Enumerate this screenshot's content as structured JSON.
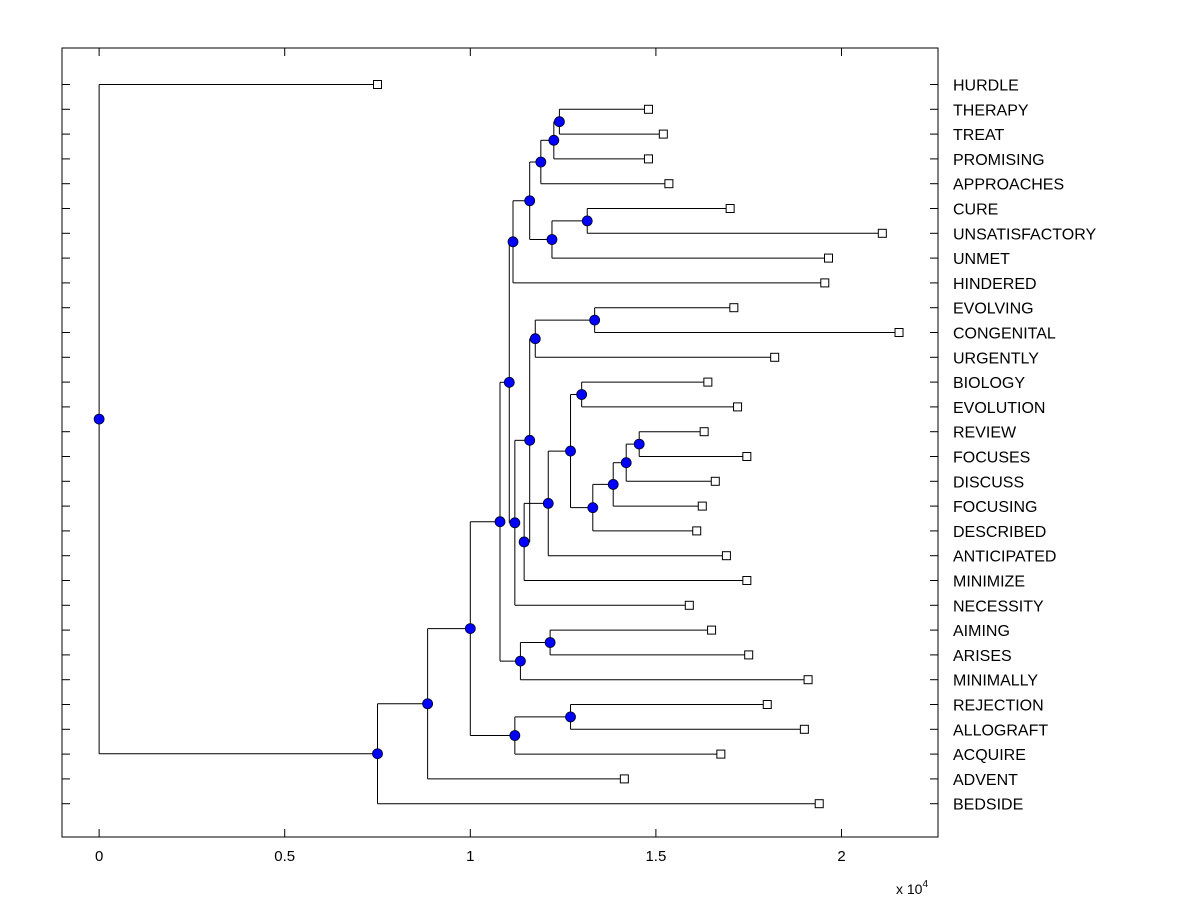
{
  "chart_data": {
    "type": "dendrogram",
    "title": "",
    "xlabel": "",
    "ylabel": "",
    "x_exponent_label": "x 10",
    "x_exponent_power": "4",
    "xlim": [
      -0.1,
      2.26
    ],
    "xticks": [
      0,
      0.5,
      1,
      1.5,
      2
    ],
    "xtick_labels": [
      "0",
      "0.5",
      "1",
      "1.5",
      "2"
    ],
    "root": "r",
    "colors": {
      "line": "#000000",
      "node": "#0000ff",
      "leaf_fill": "#ffffff"
    },
    "leaves": [
      {
        "id": "HURDLE",
        "x": 0.75
      },
      {
        "id": "THERAPY",
        "x": 1.48
      },
      {
        "id": "TREAT",
        "x": 1.52
      },
      {
        "id": "PROMISING",
        "x": 1.48
      },
      {
        "id": "APPROACHES",
        "x": 1.535
      },
      {
        "id": "CURE",
        "x": 1.7
      },
      {
        "id": "UNSATISFACTORY",
        "x": 2.11
      },
      {
        "id": "UNMET",
        "x": 1.965
      },
      {
        "id": "HINDERED",
        "x": 1.955
      },
      {
        "id": "EVOLVING",
        "x": 1.71
      },
      {
        "id": "CONGENITAL",
        "x": 2.155
      },
      {
        "id": "URGENTLY",
        "x": 1.82
      },
      {
        "id": "BIOLOGY",
        "x": 1.64
      },
      {
        "id": "EVOLUTION",
        "x": 1.72
      },
      {
        "id": "REVIEW",
        "x": 1.63
      },
      {
        "id": "FOCUSES",
        "x": 1.745
      },
      {
        "id": "DISCUSS",
        "x": 1.66
      },
      {
        "id": "FOCUSING",
        "x": 1.625
      },
      {
        "id": "DESCRIBED",
        "x": 1.61
      },
      {
        "id": "ANTICIPATED",
        "x": 1.69
      },
      {
        "id": "MINIMIZE",
        "x": 1.745
      },
      {
        "id": "NECESSITY",
        "x": 1.59
      },
      {
        "id": "AIMING",
        "x": 1.65
      },
      {
        "id": "ARISES",
        "x": 1.75
      },
      {
        "id": "MINIMALLY",
        "x": 1.91
      },
      {
        "id": "REJECTION",
        "x": 1.8
      },
      {
        "id": "ALLOGRAFT",
        "x": 1.9
      },
      {
        "id": "ACQUIRE",
        "x": 1.675
      },
      {
        "id": "ADVENT",
        "x": 1.415
      },
      {
        "id": "BEDSIDE",
        "x": 1.94
      }
    ],
    "nodes": [
      {
        "id": "n1",
        "x": 1.24,
        "children": [
          "THERAPY",
          "TREAT"
        ]
      },
      {
        "id": "n2",
        "x": 1.225,
        "children": [
          "n1",
          "PROMISING"
        ]
      },
      {
        "id": "n3",
        "x": 1.19,
        "children": [
          "n2",
          "APPROACHES"
        ]
      },
      {
        "id": "n4",
        "x": 1.315,
        "children": [
          "CURE",
          "UNSATISFACTORY"
        ]
      },
      {
        "id": "n5",
        "x": 1.22,
        "children": [
          "n4",
          "UNMET"
        ]
      },
      {
        "id": "n6",
        "x": 1.16,
        "children": [
          "n3",
          "n5"
        ]
      },
      {
        "id": "n7",
        "x": 1.115,
        "children": [
          "n6",
          "HINDERED"
        ]
      },
      {
        "id": "n8",
        "x": 1.335,
        "children": [
          "EVOLVING",
          "CONGENITAL"
        ]
      },
      {
        "id": "n9",
        "x": 1.175,
        "children": [
          "n8",
          "URGENTLY"
        ]
      },
      {
        "id": "n10",
        "x": 1.3,
        "children": [
          "BIOLOGY",
          "EVOLUTION"
        ]
      },
      {
        "id": "n11",
        "x": 1.455,
        "children": [
          "REVIEW",
          "FOCUSES"
        ]
      },
      {
        "id": "n12",
        "x": 1.42,
        "children": [
          "n11",
          "DISCUSS"
        ]
      },
      {
        "id": "n13",
        "x": 1.385,
        "children": [
          "n12",
          "FOCUSING"
        ]
      },
      {
        "id": "n14",
        "x": 1.33,
        "children": [
          "n13",
          "DESCRIBED"
        ]
      },
      {
        "id": "n15",
        "x": 1.27,
        "children": [
          "n10",
          "n14"
        ]
      },
      {
        "id": "n16",
        "x": 1.21,
        "children": [
          "n15",
          "ANTICIPATED"
        ]
      },
      {
        "id": "n17",
        "x": 1.145,
        "children": [
          "n16",
          "MINIMIZE"
        ]
      },
      {
        "id": "n18",
        "x": 1.16,
        "children": [
          "n9",
          "n17"
        ]
      },
      {
        "id": "n19",
        "x": 1.12,
        "children": [
          "n18",
          "NECESSITY"
        ]
      },
      {
        "id": "n20",
        "x": 1.105,
        "children": [
          "n7",
          "n19"
        ]
      },
      {
        "id": "n21",
        "x": 1.215,
        "children": [
          "AIMING",
          "ARISES"
        ]
      },
      {
        "id": "n22",
        "x": 1.135,
        "children": [
          "n21",
          "MINIMALLY"
        ]
      },
      {
        "id": "n23",
        "x": 1.08,
        "children": [
          "n20",
          "n22"
        ]
      },
      {
        "id": "n24",
        "x": 1.27,
        "children": [
          "REJECTION",
          "ALLOGRAFT"
        ]
      },
      {
        "id": "n25",
        "x": 1.12,
        "children": [
          "n24",
          "ACQUIRE"
        ]
      },
      {
        "id": "n26",
        "x": 1.0,
        "children": [
          "n23",
          "n25"
        ]
      },
      {
        "id": "n27",
        "x": 0.885,
        "children": [
          "n26",
          "ADVENT"
        ]
      },
      {
        "id": "n28",
        "x": 0.75,
        "children": [
          "n27",
          "BEDSIDE"
        ]
      },
      {
        "id": "r",
        "x": 0.0,
        "children": [
          "HURDLE",
          "n28"
        ]
      }
    ]
  }
}
